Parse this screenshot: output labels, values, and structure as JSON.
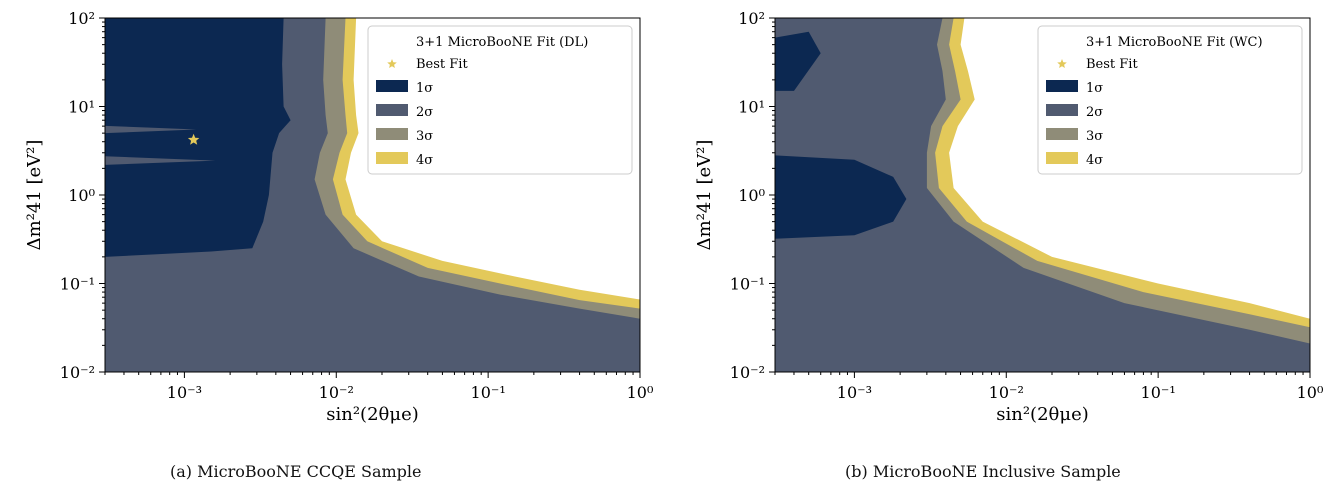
{
  "colors": {
    "sigma1": "#0c2851",
    "sigma2": "#505a70",
    "sigma3": "#8f8c78",
    "sigma4": "#e3c95a",
    "best_fit_star": "#e3c95a"
  },
  "captions": [
    "(a) MicroBooNE CCQE Sample",
    "(b) MicroBooNE Inclusive Sample"
  ],
  "chart_data": [
    {
      "type": "contour",
      "xlabel": "sin²(2θμe)",
      "ylabel": "Δm²41 [eV²]",
      "x_scale": "log",
      "y_scale": "log",
      "xlim": [
        0.0003,
        1
      ],
      "ylim": [
        0.01,
        100
      ],
      "x_ticks": [
        "10⁻³",
        "10⁻²",
        "10⁻¹",
        "10⁰"
      ],
      "y_ticks": [
        "10⁻²",
        "10⁻¹",
        "10⁰",
        "10¹",
        "10²"
      ],
      "legend_position": "top-right",
      "legend_title": "3+1 MicroBooNE Fit (DL)",
      "legend": [
        "Best Fit",
        "1σ",
        "2σ",
        "3σ",
        "4σ"
      ],
      "best_fit": {
        "x": 0.00115,
        "y": 4.2
      },
      "regions": {
        "4sigma_boundary": [
          [
            0.0135,
            100
          ],
          [
            0.013,
            20
          ],
          [
            0.0135,
            8
          ],
          [
            0.014,
            5
          ],
          [
            0.0125,
            3
          ],
          [
            0.0115,
            1.5
          ],
          [
            0.0135,
            0.6
          ],
          [
            0.02,
            0.3
          ],
          [
            0.05,
            0.18
          ],
          [
            0.15,
            0.12
          ],
          [
            0.4,
            0.085
          ],
          [
            1,
            0.066
          ]
        ],
        "3sigma_boundary": [
          [
            0.0115,
            100
          ],
          [
            0.011,
            20
          ],
          [
            0.0115,
            8
          ],
          [
            0.0118,
            5
          ],
          [
            0.0105,
            3
          ],
          [
            0.0095,
            1.5
          ],
          [
            0.011,
            0.6
          ],
          [
            0.016,
            0.3
          ],
          [
            0.04,
            0.15
          ],
          [
            0.12,
            0.1
          ],
          [
            0.4,
            0.065
          ],
          [
            1,
            0.052
          ]
        ],
        "2sigma_boundary": [
          [
            0.0085,
            100
          ],
          [
            0.0082,
            20
          ],
          [
            0.0085,
            8
          ],
          [
            0.0088,
            5
          ],
          [
            0.0078,
            3
          ],
          [
            0.0072,
            1.5
          ],
          [
            0.0085,
            0.6
          ],
          [
            0.013,
            0.25
          ],
          [
            0.035,
            0.12
          ],
          [
            0.12,
            0.075
          ],
          [
            0.4,
            0.052
          ],
          [
            1,
            0.04
          ]
        ],
        "1sigma_boundary": [
          [
            0.0045,
            100
          ],
          [
            0.0044,
            30
          ],
          [
            0.0045,
            10
          ],
          [
            0.005,
            7
          ],
          [
            0.0042,
            5
          ],
          [
            0.0038,
            3
          ],
          [
            0.0036,
            1
          ],
          [
            0.0033,
            0.5
          ],
          [
            0.0028,
            0.25
          ],
          [
            0.0015,
            0.23
          ],
          [
            0.0003,
            0.2
          ]
        ]
      }
    },
    {
      "type": "contour",
      "xlabel": "sin²(2θμe)",
      "ylabel": "Δm²41 [eV²]",
      "x_scale": "log",
      "y_scale": "log",
      "xlim": [
        0.0003,
        1
      ],
      "ylim": [
        0.01,
        100
      ],
      "x_ticks": [
        "10⁻³",
        "10⁻²",
        "10⁻¹",
        "10⁰"
      ],
      "y_ticks": [
        "10⁻²",
        "10⁻¹",
        "10⁰",
        "10¹",
        "10²"
      ],
      "legend_position": "top-right",
      "legend_title": "3+1 MicroBooNE Fit (WC)",
      "legend": [
        "Best Fit",
        "1σ",
        "2σ",
        "3σ",
        "4σ"
      ],
      "regions": {
        "4sigma_boundary": [
          [
            0.0053,
            100
          ],
          [
            0.005,
            50
          ],
          [
            0.0056,
            25
          ],
          [
            0.0062,
            12
          ],
          [
            0.0048,
            6
          ],
          [
            0.0042,
            3
          ],
          [
            0.0045,
            1.2
          ],
          [
            0.007,
            0.5
          ],
          [
            0.02,
            0.2
          ],
          [
            0.1,
            0.1
          ],
          [
            0.4,
            0.06
          ],
          [
            1,
            0.04
          ]
        ],
        "3sigma_boundary": [
          [
            0.0045,
            100
          ],
          [
            0.0042,
            50
          ],
          [
            0.0046,
            25
          ],
          [
            0.005,
            12
          ],
          [
            0.0038,
            6
          ],
          [
            0.0034,
            3
          ],
          [
            0.0036,
            1.2
          ],
          [
            0.0055,
            0.5
          ],
          [
            0.016,
            0.18
          ],
          [
            0.08,
            0.08
          ],
          [
            0.4,
            0.045
          ],
          [
            1,
            0.032
          ]
        ],
        "2sigma_boundary": [
          [
            0.0038,
            100
          ],
          [
            0.0035,
            50
          ],
          [
            0.0038,
            25
          ],
          [
            0.004,
            12
          ],
          [
            0.0032,
            6
          ],
          [
            0.003,
            3
          ],
          [
            0.003,
            1.2
          ],
          [
            0.0045,
            0.5
          ],
          [
            0.013,
            0.15
          ],
          [
            0.06,
            0.06
          ],
          [
            0.4,
            0.03
          ],
          [
            1,
            0.021
          ]
        ],
        "1sigma_islands": [
          [
            [
              0.0003,
              2.8
            ],
            [
              0.001,
              2.5
            ],
            [
              0.0018,
              1.6
            ],
            [
              0.0022,
              0.9
            ],
            [
              0.0018,
              0.5
            ],
            [
              0.001,
              0.35
            ],
            [
              0.0003,
              0.32
            ]
          ],
          [
            [
              0.0003,
              60
            ],
            [
              0.0005,
              70
            ],
            [
              0.0006,
              40
            ],
            [
              0.0004,
              15
            ],
            [
              0.0003,
              15
            ]
          ]
        ]
      }
    }
  ]
}
